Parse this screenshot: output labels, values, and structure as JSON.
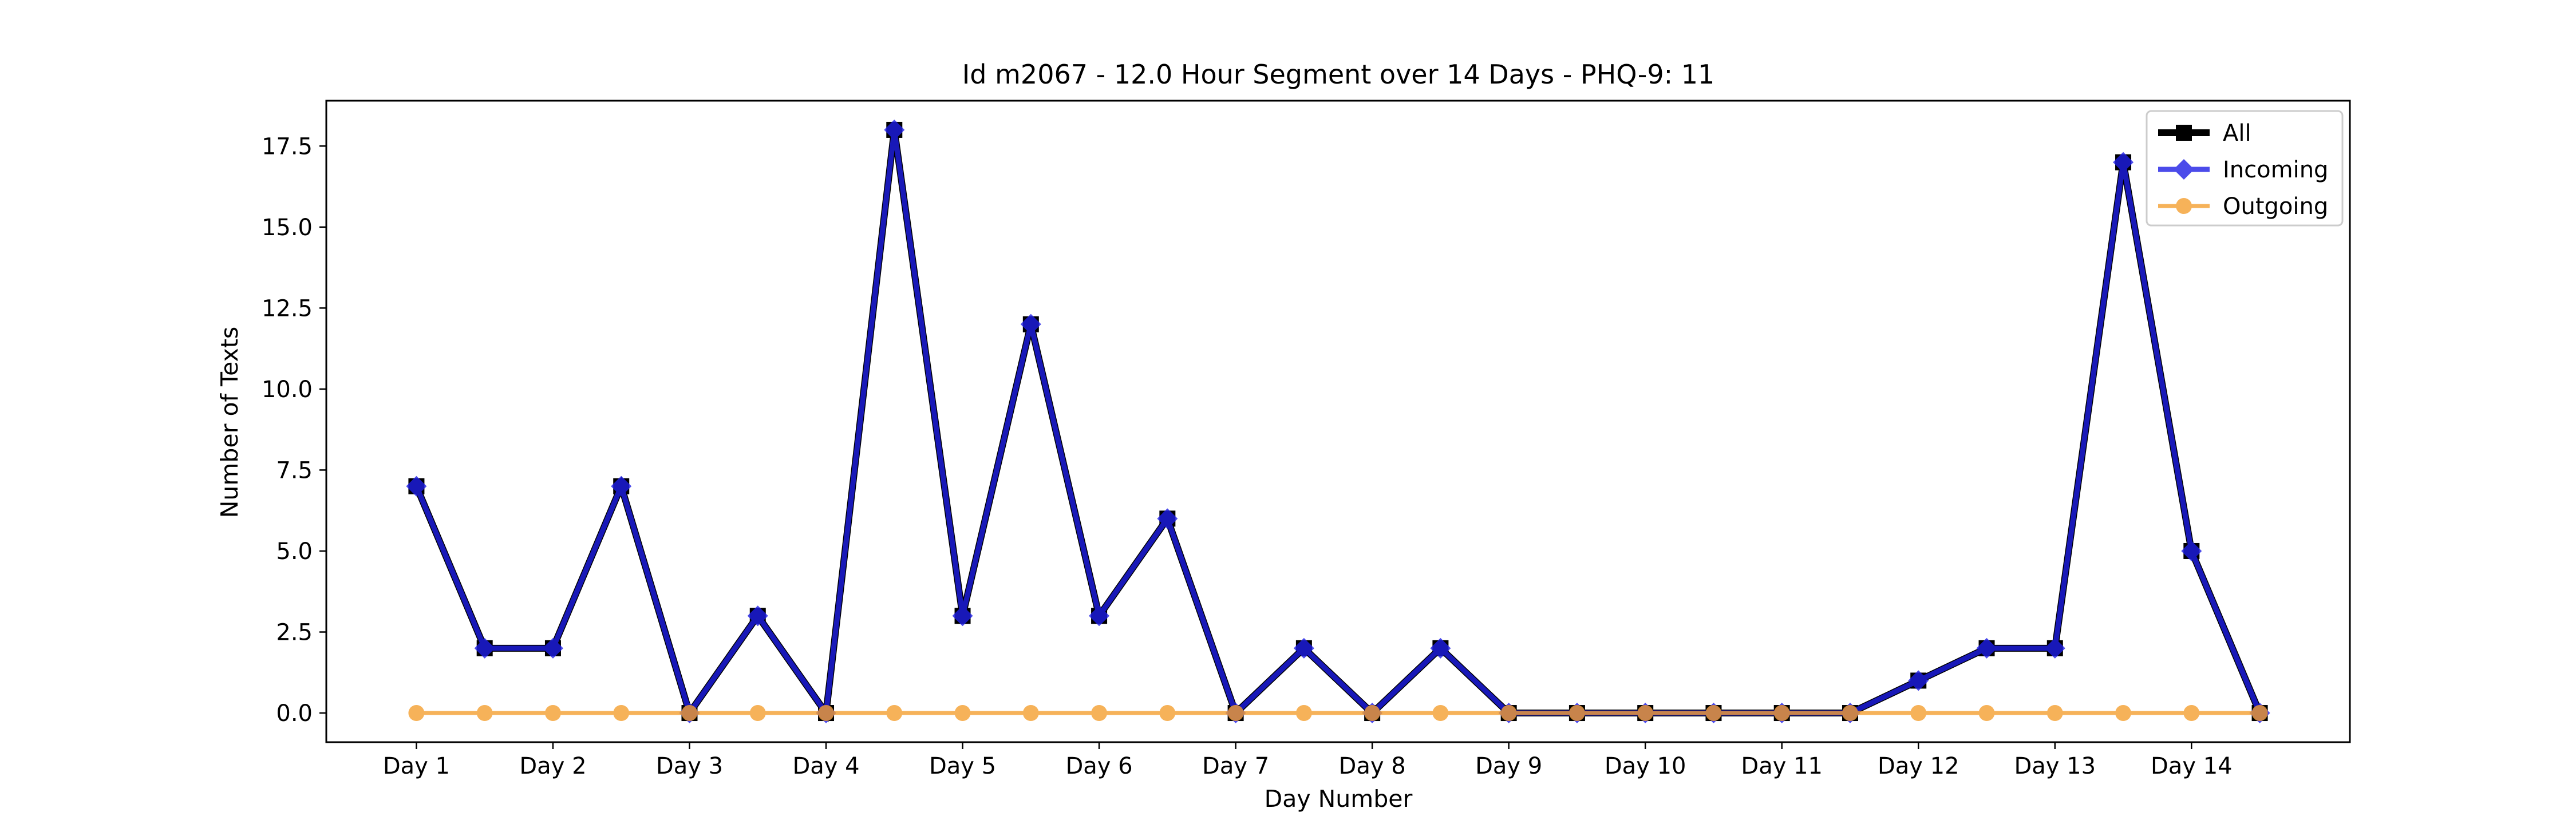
{
  "chart_data": {
    "type": "line",
    "title": "Id m2067 - 12.0 Hour Segment over 14 Days - PHQ-9: 11",
    "xlabel": "Day Number",
    "ylabel": "Number of Texts",
    "x_tick_labels": [
      "Day 1",
      "Day 2",
      "Day 3",
      "Day 4",
      "Day 5",
      "Day 6",
      "Day 7",
      "Day 8",
      "Day 9",
      "Day 10",
      "Day 11",
      "Day 12",
      "Day 13",
      "Day 14"
    ],
    "y_ticks": [
      "0.0",
      "2.5",
      "5.0",
      "7.5",
      "10.0",
      "12.5",
      "15.0",
      "17.5"
    ],
    "ylim": [
      -0.9,
      18.9
    ],
    "grid": false,
    "legend_position": "top-right",
    "x": [
      1,
      1.5,
      2,
      2.5,
      3,
      3.5,
      4,
      4.5,
      5,
      5.5,
      6,
      6.5,
      7,
      7.5,
      8,
      8.5,
      9,
      9.5,
      10,
      10.5,
      11,
      11.5,
      12,
      12.5,
      13,
      13.5,
      14,
      14.5
    ],
    "series": [
      {
        "name": "All",
        "color": "#000000",
        "marker": "square",
        "values": [
          7,
          2,
          2,
          7,
          0,
          3,
          0,
          18,
          3,
          12,
          3,
          6,
          0,
          2,
          0,
          2,
          0,
          0,
          0,
          0,
          0,
          0,
          1,
          2,
          2,
          17,
          5,
          0
        ]
      },
      {
        "name": "Incoming",
        "color": "#1f1fe6",
        "marker": "diamond",
        "values": [
          7,
          2,
          2,
          7,
          0,
          3,
          0,
          18,
          3,
          12,
          3,
          6,
          0,
          2,
          0,
          2,
          0,
          0,
          0,
          0,
          0,
          0,
          1,
          2,
          2,
          17,
          5,
          0
        ]
      },
      {
        "name": "Outgoing",
        "color": "#f5a030",
        "marker": "circle",
        "values": [
          0,
          0,
          0,
          0,
          0,
          0,
          0,
          0,
          0,
          0,
          0,
          0,
          0,
          0,
          0,
          0,
          0,
          0,
          0,
          0,
          0,
          0,
          0,
          0,
          0,
          0,
          0,
          0
        ]
      }
    ]
  }
}
